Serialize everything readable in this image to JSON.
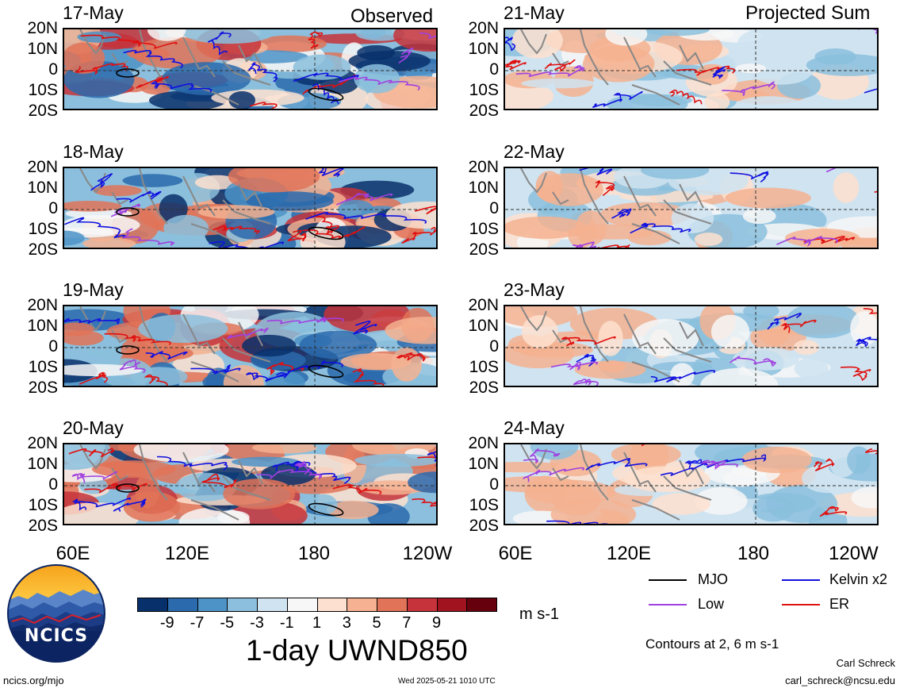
{
  "header": {
    "observed_label": "Observed",
    "projected_label": "Projected Sum"
  },
  "panels": {
    "observed": [
      "17-May",
      "18-May",
      "19-May",
      "20-May"
    ],
    "projected": [
      "21-May",
      "22-May",
      "23-May",
      "24-May"
    ]
  },
  "axes": {
    "lat_labels": [
      "20N",
      "10N",
      "0",
      "10S",
      "20S"
    ],
    "lon_labels": [
      "60E",
      "120E",
      "180",
      "120W"
    ]
  },
  "colorbar": {
    "colors": [
      "#08306b",
      "#2a6aad",
      "#4d93c7",
      "#8bbfdd",
      "#cfe3f0",
      "#f7f7f7",
      "#fde0cf",
      "#f5b191",
      "#e07358",
      "#c6333a",
      "#a1141f",
      "#67000d"
    ],
    "tick_labels": [
      "-9",
      "-7",
      "-5",
      "-3",
      "-1",
      "1",
      "3",
      "5",
      "7",
      "9"
    ],
    "units": "m s-1",
    "title": "1-day UWND850"
  },
  "legend": {
    "items": [
      {
        "label": "MJO",
        "color": "#000000"
      },
      {
        "label": "Kelvin x2",
        "color": "#1010e0"
      },
      {
        "label": "Low",
        "color": "#a040e0"
      },
      {
        "label": "ER",
        "color": "#e01010"
      }
    ],
    "contours_note": "Contours at 2, 6 m s-1"
  },
  "logo": {
    "text": "NCICS"
  },
  "footer": {
    "url": "ncics.org/mjo",
    "timestamp": "Wed 2025-05-21 1010 UTC",
    "author": "Carl Schreck",
    "email": "carl_schreck@ncsu.edu"
  },
  "colors": {
    "background": "#ffffff",
    "land_outline": "#888888",
    "mjo": "#000000",
    "kelvin": "#1010e0",
    "low": "#a040e0",
    "er": "#e01010"
  }
}
